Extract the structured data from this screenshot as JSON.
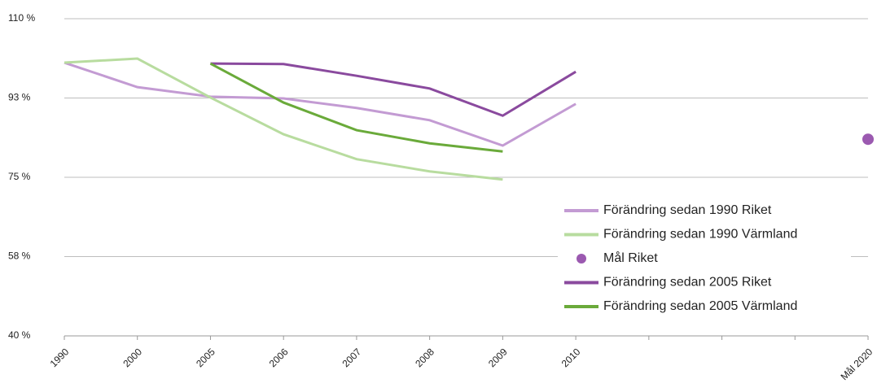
{
  "chart_data": {
    "type": "line",
    "categories": [
      "1990",
      "2000",
      "2005",
      "2006",
      "2007",
      "2008",
      "2009",
      "2010",
      null,
      null,
      null,
      "Mål 2020"
    ],
    "ylim": [
      40,
      110
    ],
    "yticks": [
      {
        "value": 40,
        "label": "40 %"
      },
      {
        "value": 57.5,
        "label": "58 %"
      },
      {
        "value": 75,
        "label": "75 %"
      },
      {
        "value": 92.5,
        "label": "93 %"
      },
      {
        "value": 110,
        "label": "110 %"
      }
    ],
    "grid": true,
    "legend": "right",
    "series": [
      {
        "name": "Förändring sedan 1990 Riket",
        "color": "#c39bd3",
        "style": "line",
        "values": [
          100.3,
          94.9,
          92.8,
          92.4,
          90.3,
          87.6,
          82,
          91.2,
          null,
          null,
          null,
          null
        ]
      },
      {
        "name": "Förändring sedan 1990 Värmland",
        "color": "#b8dc9f",
        "style": "line",
        "values": [
          100.3,
          101.2,
          92.6,
          84.5,
          79,
          76.3,
          74.5,
          null,
          null,
          null,
          null,
          null
        ]
      },
      {
        "name": "Mål Riket",
        "color": "#9b59b0",
        "style": "point",
        "values": [
          null,
          null,
          null,
          null,
          null,
          null,
          null,
          null,
          null,
          null,
          null,
          83.4
        ]
      },
      {
        "name": "Förändring sedan 2005 Riket",
        "color": "#8a4a9e",
        "style": "line",
        "values": [
          null,
          null,
          100.1,
          100,
          97.4,
          94.6,
          88.6,
          98.3,
          null,
          null,
          null,
          null
        ]
      },
      {
        "name": "Förändring sedan 2005 Värmland",
        "color": "#6aaa3a",
        "style": "line",
        "values": [
          null,
          null,
          100.1,
          91.5,
          85.4,
          82.5,
          80.7,
          null,
          null,
          null,
          null,
          null
        ]
      }
    ]
  }
}
